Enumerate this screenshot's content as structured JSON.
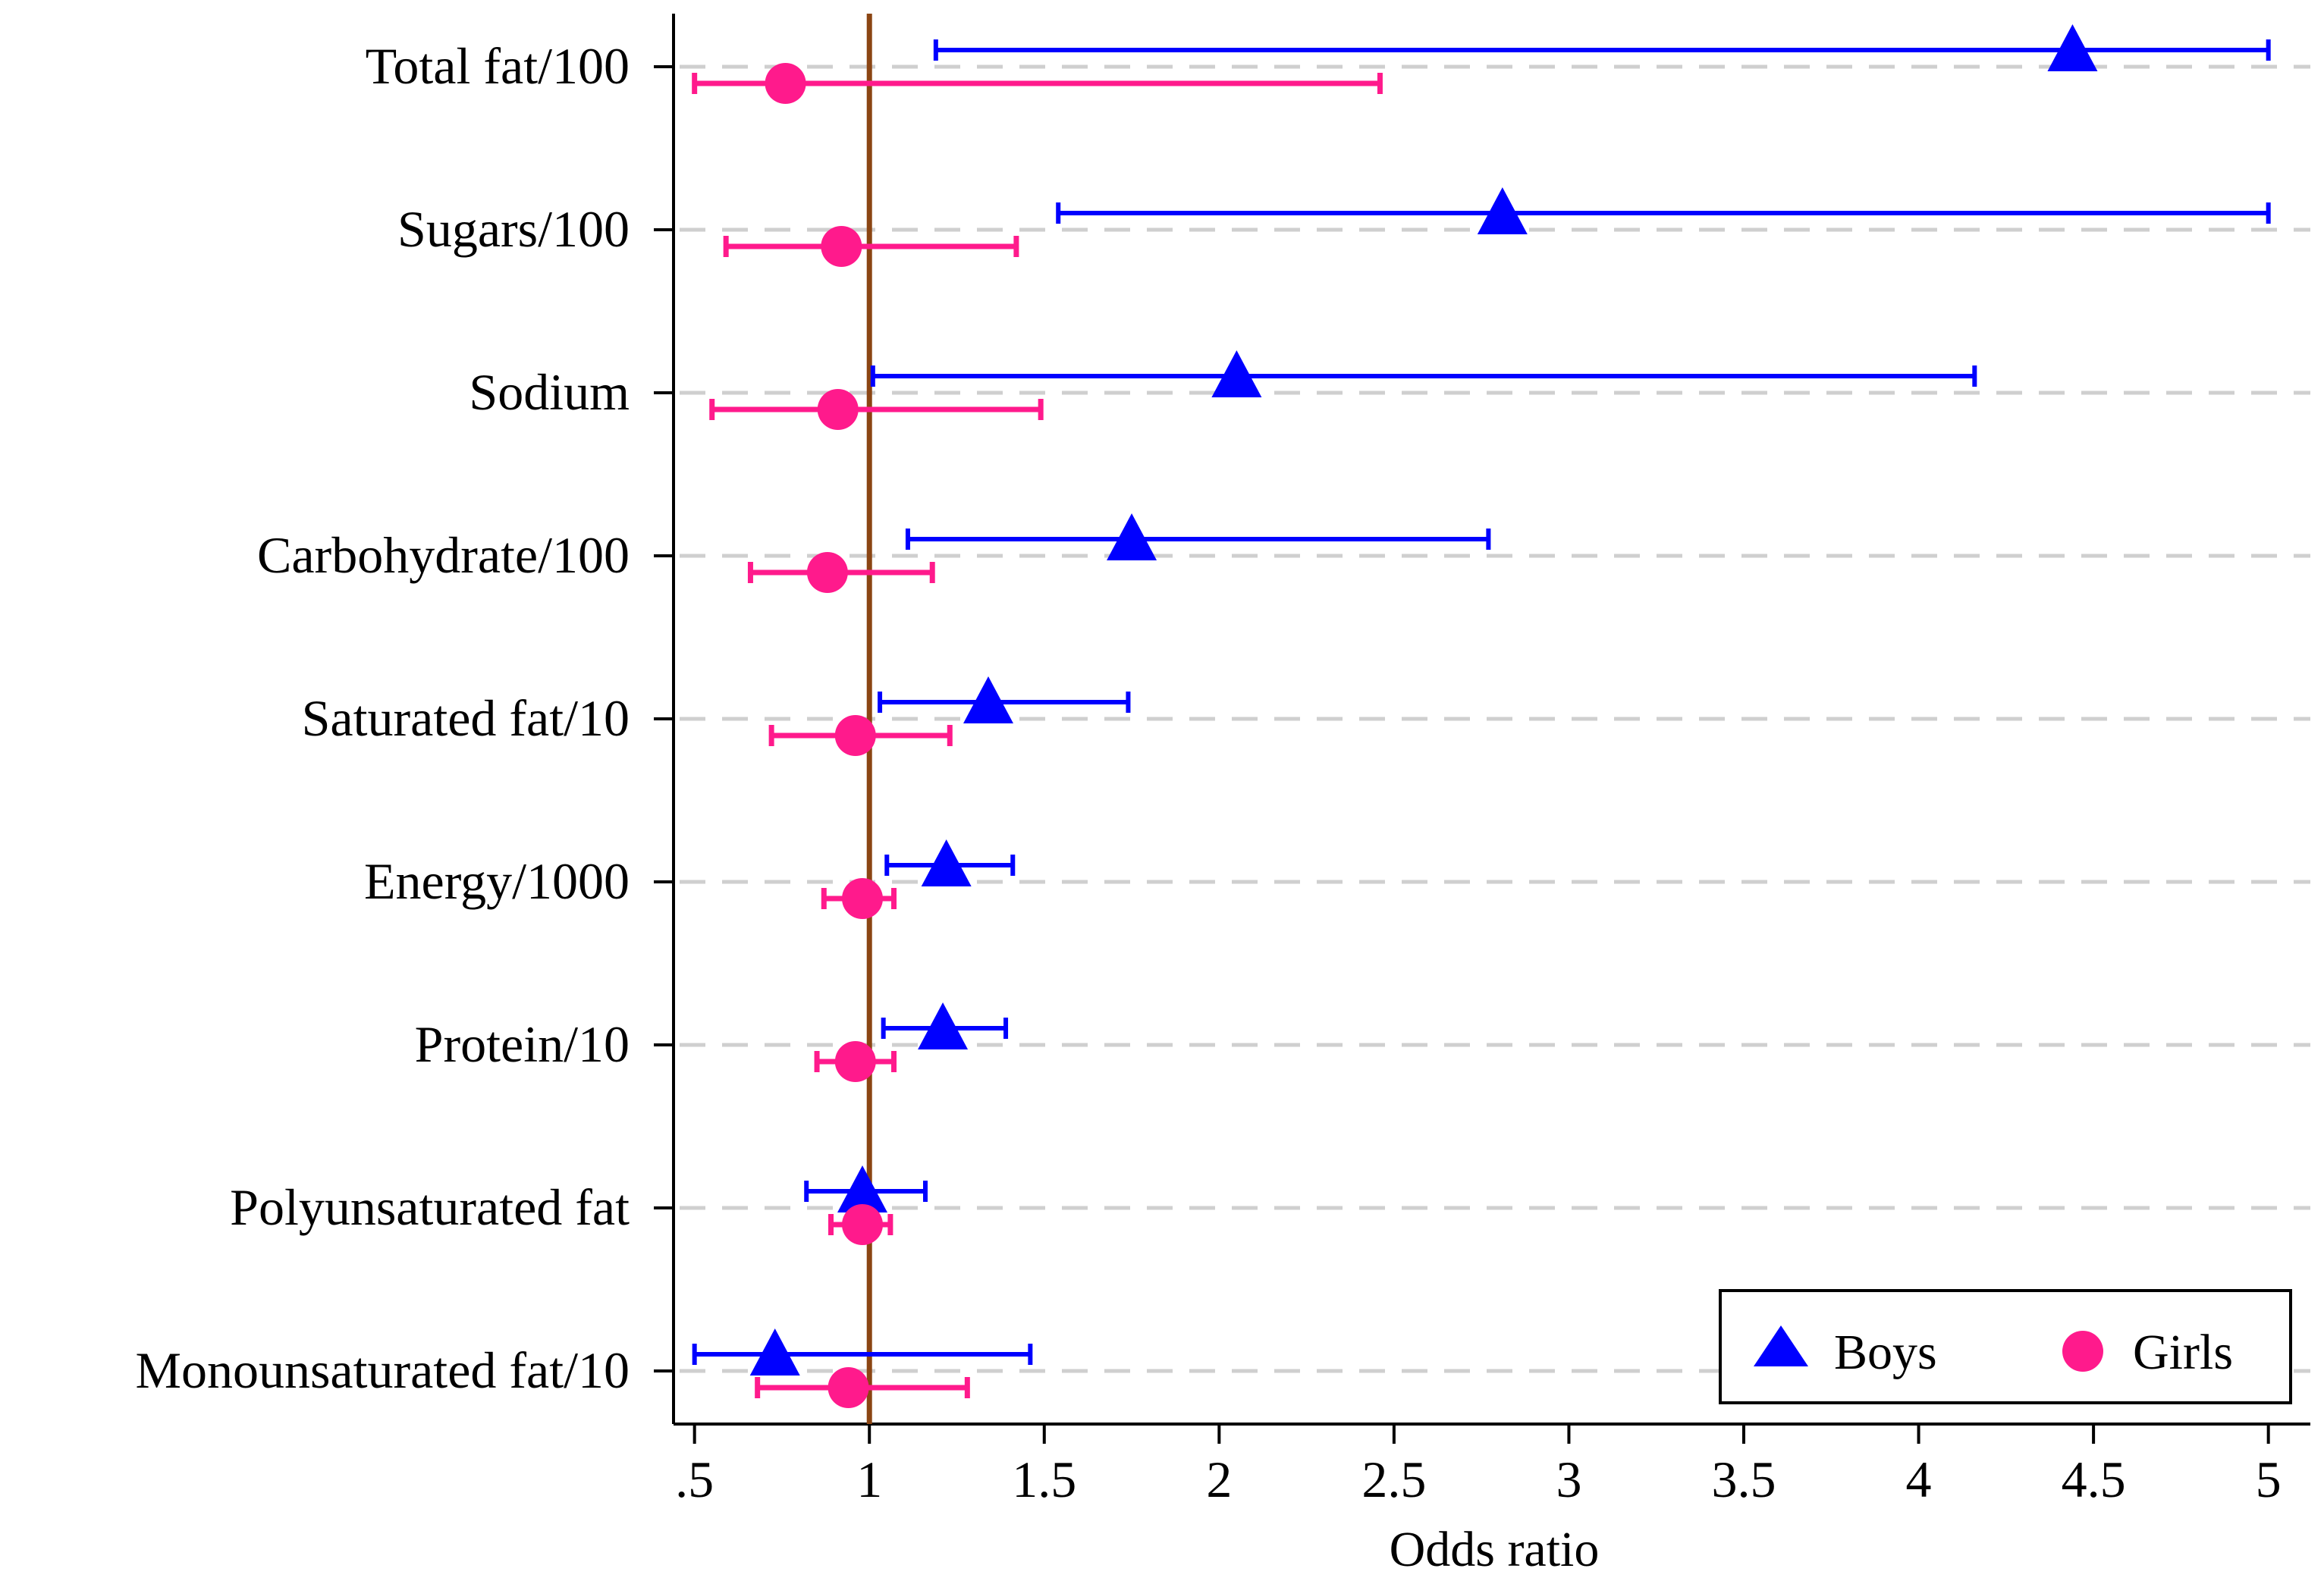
{
  "chart_data": {
    "type": "scatter",
    "subtype": "forest-plot",
    "title": "",
    "xlabel": "Odds ratio",
    "ylabel": "",
    "xlim": [
      0.44,
      5.12
    ],
    "xticks": [
      0.5,
      1,
      1.5,
      2,
      2.5,
      3,
      3.5,
      4,
      4.5,
      5
    ],
    "xtick_labels": [
      ".5",
      "1",
      "1.5",
      "2",
      "2.5",
      "3",
      "3.5",
      "4",
      "4.5",
      "5"
    ],
    "reference_line": 1,
    "grid": "dashed horizontal lines at each category",
    "legend_position": "bottom-right",
    "categories": [
      "Total fat/100",
      "Sugars/100",
      "Sodium",
      "Carbohydrate/100",
      "Saturated fat/10",
      "Energy/1000",
      "Protein/10",
      "Polyunsaturated fat",
      "Monounsaturated fat/10"
    ],
    "series": [
      {
        "name": "Boys",
        "marker": "triangle",
        "color": "#0000ff",
        "estimate": [
          4.44,
          2.81,
          2.05,
          1.75,
          1.34,
          1.22,
          1.21,
          0.98,
          0.73
        ],
        "lower": [
          1.19,
          1.54,
          1.01,
          1.11,
          1.03,
          1.05,
          1.04,
          0.82,
          0.5
        ],
        "upper": [
          5.0,
          5.0,
          4.16,
          2.77,
          1.74,
          1.41,
          1.39,
          1.16,
          1.46
        ]
      },
      {
        "name": "Girls",
        "marker": "circle",
        "color": "#ff1a8c",
        "estimate": [
          0.76,
          0.92,
          0.91,
          0.88,
          0.96,
          0.98,
          0.96,
          0.98,
          0.94
        ],
        "lower": [
          0.5,
          0.59,
          0.55,
          0.66,
          0.72,
          0.87,
          0.85,
          0.89,
          0.68
        ],
        "upper": [
          2.46,
          1.42,
          1.49,
          1.18,
          1.23,
          1.07,
          1.07,
          1.06,
          1.28
        ]
      }
    ]
  },
  "colors": {
    "reference_line": "#8b4513",
    "gridline": "#cfcfcf",
    "axis": "#000000"
  }
}
